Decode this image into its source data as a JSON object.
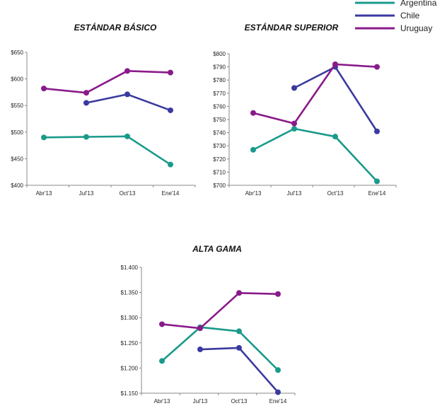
{
  "legend": [
    {
      "name": "Argentina",
      "color": "#1a9a8a"
    },
    {
      "name": "Chile",
      "color": "#3a3aa0"
    },
    {
      "name": "Uruguay",
      "color": "#8a1a8a"
    }
  ],
  "chart_data": [
    {
      "type": "line",
      "title": "ESTÁNDAR BÁSICO",
      "categories": [
        "Abr'13",
        "Jul'13",
        "Oct'13",
        "Ene'14"
      ],
      "yticks": [
        "$400",
        "$450",
        "$500",
        "$550",
        "$600",
        "$650"
      ],
      "ylim": [
        400,
        650
      ],
      "grid": false,
      "series": [
        {
          "name": "Argentina",
          "values": [
            490,
            491,
            492,
            439
          ]
        },
        {
          "name": "Chile",
          "values": [
            null,
            555,
            571,
            541
          ]
        },
        {
          "name": "Uruguay",
          "values": [
            582,
            574,
            615,
            612
          ]
        }
      ]
    },
    {
      "type": "line",
      "title": "ESTÁNDAR SUPERIOR",
      "categories": [
        "Abr'13",
        "Jul'13",
        "Oct'13",
        "Ene'14"
      ],
      "yticks": [
        "$700",
        "$710",
        "$720",
        "$730",
        "$740",
        "$750",
        "$760",
        "$770",
        "$780",
        "$790",
        "$800"
      ],
      "ylim": [
        700,
        800
      ],
      "grid": false,
      "series": [
        {
          "name": "Argentina",
          "values": [
            727,
            743,
            737,
            703
          ]
        },
        {
          "name": "Chile",
          "values": [
            null,
            774,
            790,
            741
          ]
        },
        {
          "name": "Uruguay",
          "values": [
            755,
            747,
            792,
            790
          ]
        }
      ]
    },
    {
      "type": "line",
      "title": "ALTA GAMA",
      "categories": [
        "Abr'13",
        "Jul'13",
        "Oct'13",
        "Ene'14"
      ],
      "yticks": [
        "$1.150",
        "$1.200",
        "$1.250",
        "$1.300",
        "$1.350",
        "$1.400"
      ],
      "ylim": [
        1150,
        1400
      ],
      "grid": false,
      "series": [
        {
          "name": "Argentina",
          "values": [
            1214,
            1281,
            1273,
            1196
          ]
        },
        {
          "name": "Chile",
          "values": [
            null,
            1237,
            1240,
            1152
          ]
        },
        {
          "name": "Uruguay",
          "values": [
            1287,
            1279,
            1349,
            1347
          ]
        }
      ]
    }
  ]
}
